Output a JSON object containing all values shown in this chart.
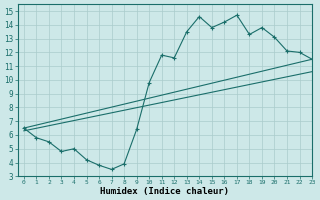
{
  "title": "",
  "xlabel": "Humidex (Indice chaleur)",
  "ylabel": "",
  "bg_color": "#cde8e8",
  "line_color": "#1a6e6a",
  "grid_color": "#aacccc",
  "xlim": [
    -0.5,
    23
  ],
  "ylim": [
    3,
    15.5
  ],
  "xticks": [
    0,
    1,
    2,
    3,
    4,
    5,
    6,
    7,
    8,
    9,
    10,
    11,
    12,
    13,
    14,
    15,
    16,
    17,
    18,
    19,
    20,
    21,
    22,
    23
  ],
  "yticks": [
    3,
    4,
    5,
    6,
    7,
    8,
    9,
    10,
    11,
    12,
    13,
    14,
    15
  ],
  "curve1_x": [
    0,
    1,
    2,
    3,
    4,
    5,
    6,
    7,
    8,
    9,
    10,
    11,
    12,
    13,
    14,
    15,
    16,
    17,
    18,
    19,
    20,
    21,
    22,
    23
  ],
  "curve1_y": [
    6.5,
    5.8,
    5.5,
    4.8,
    5.0,
    4.2,
    3.8,
    3.5,
    3.9,
    6.4,
    9.8,
    11.8,
    11.6,
    13.5,
    14.6,
    13.8,
    14.2,
    14.7,
    13.3,
    13.8,
    13.1,
    12.1,
    12.0,
    11.5
  ],
  "line2_x": [
    0,
    23
  ],
  "line2_y": [
    6.5,
    11.5
  ],
  "line3_x": [
    0,
    23
  ],
  "line3_y": [
    6.3,
    10.6
  ],
  "marker": "+"
}
